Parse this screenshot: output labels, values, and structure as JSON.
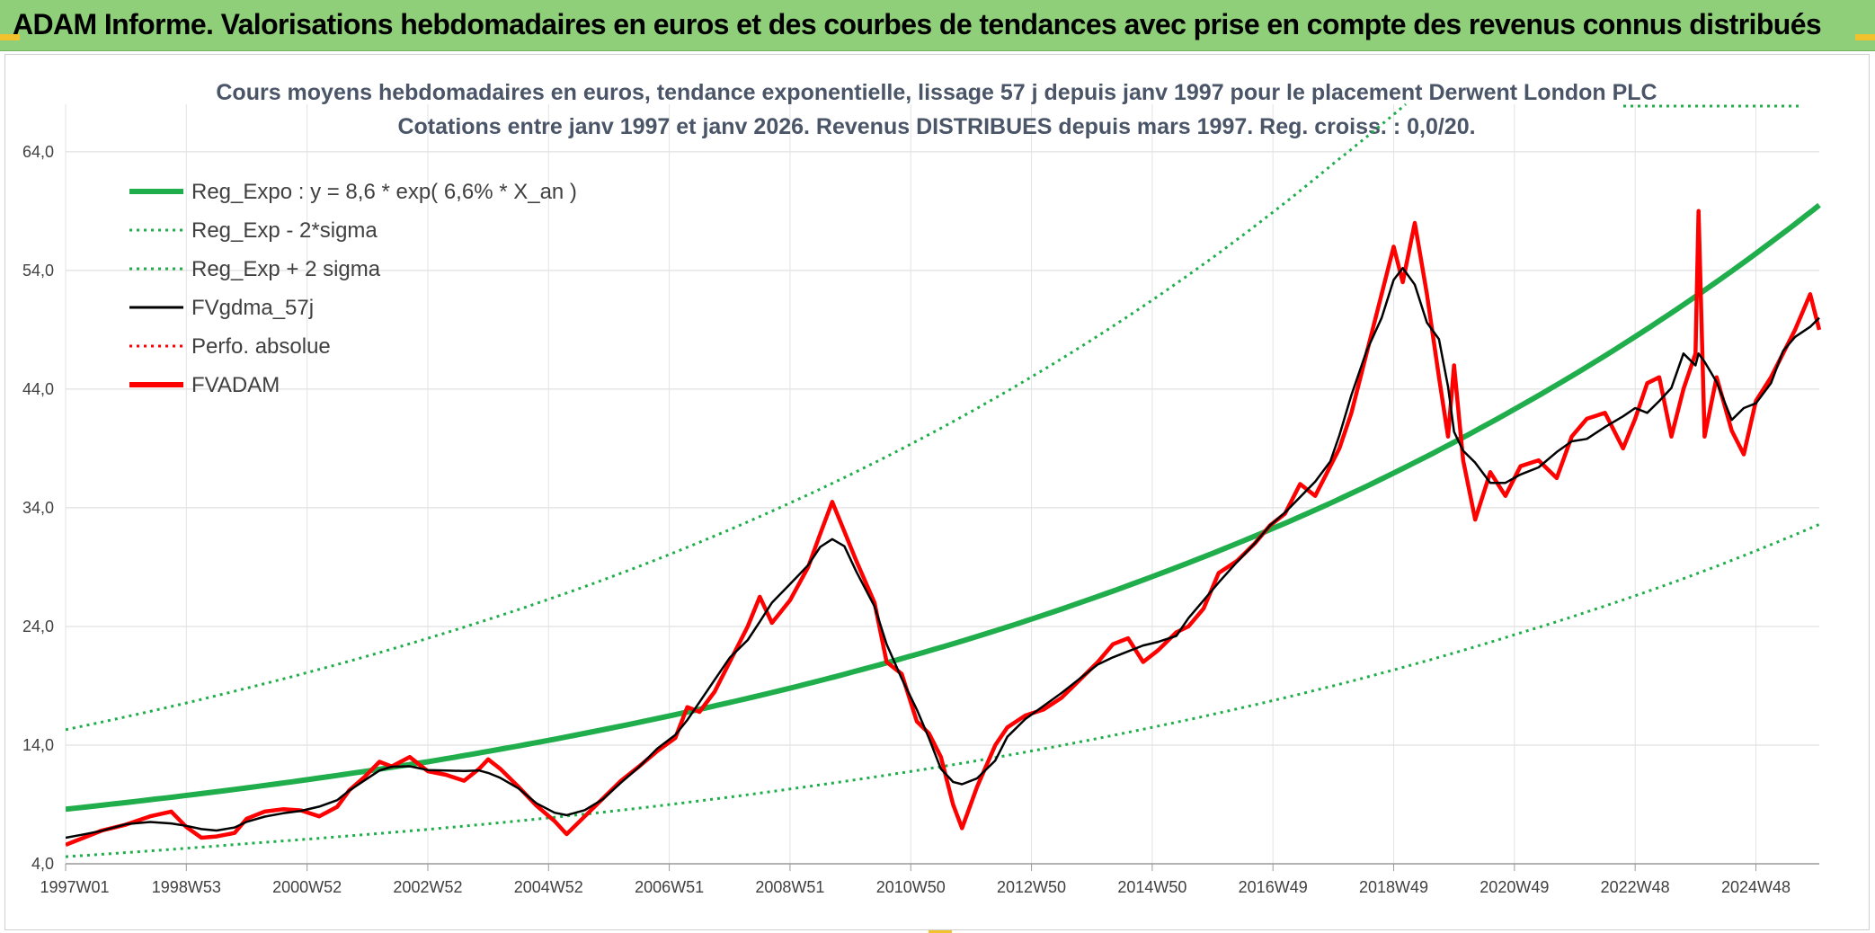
{
  "banner": {
    "title": "ADAM Informe. Valorisations hebdomadaires en euros et des courbes de tendances avec prise en compte des revenus connus distribués"
  },
  "colors": {
    "banner_bg": "#8fcf7a",
    "trend_green": "#1fae4b",
    "price_red": "#ff0000",
    "smooth_black": "#000000",
    "corner_gold": "#f2c12e"
  },
  "chart_data": {
    "type": "line",
    "title_lines": [
      "Cours moyens hebdomadaires en euros, tendance exponentielle, lissage 57 j depuis janv 1997 pour le placement Derwent London PLC",
      "Cotations entre janv 1997 et janv 2026. Revenus DISTRIBUES depuis mars 1997. Reg. croiss. : 0,0/20."
    ],
    "x_tick_labels": [
      "1997W01",
      "1998W53",
      "2000W52",
      "2002W52",
      "2004W52",
      "2006W51",
      "2008W51",
      "2010W50",
      "2012W50",
      "2014W50",
      "2016W49",
      "2018W49",
      "2020W49",
      "2022W48",
      "2024W48"
    ],
    "x_range_years": [
      1997.0,
      2026.05
    ],
    "y_tick_labels": [
      "4,0",
      "14,0",
      "24,0",
      "34,0",
      "44,0",
      "54,0",
      "64,0"
    ],
    "y_ticks": [
      4,
      14,
      24,
      34,
      44,
      54,
      64
    ],
    "ylim": [
      4,
      68
    ],
    "grid": true,
    "legend_position": "top-left",
    "legend": [
      {
        "label": "Reg_Expo : y = 8,6 * exp( 6,6% *  X_an )",
        "style": "solid-thick",
        "color": "#1fae4b"
      },
      {
        "label": "Reg_Exp - 2*sigma",
        "style": "dotted",
        "color": "#1fae4b"
      },
      {
        "label": "Reg_Exp + 2 sigma",
        "style": "dotted",
        "color": "#1fae4b"
      },
      {
        "label": "FVgdma_57j",
        "style": "solid",
        "color": "#000000"
      },
      {
        "label": "Perfo. absolue",
        "style": "dotted",
        "color": "#ff0000"
      },
      {
        "label": "FVADAM",
        "style": "solid-thick",
        "color": "#ff0000"
      }
    ],
    "series": [
      {
        "name": "Reg_Expo : y = 8,6 * exp( 6,6% *  X_an )",
        "kind": "exp",
        "points": [
          [
            1997.0,
            8.6
          ],
          [
            2000.0,
            10.4
          ],
          [
            2003.0,
            12.6
          ],
          [
            2006.0,
            15.4
          ],
          [
            2009.0,
            18.8
          ],
          [
            2012.0,
            23.0
          ],
          [
            2015.0,
            28.2
          ],
          [
            2018.0,
            34.5
          ],
          [
            2021.0,
            42.3
          ],
          [
            2024.0,
            51.8
          ],
          [
            2026.05,
            59.5
          ]
        ]
      },
      {
        "name": "Reg_Exp - 2*sigma",
        "kind": "exp",
        "points": [
          [
            1997.0,
            4.6
          ],
          [
            2000.0,
            5.7
          ],
          [
            2003.0,
            6.9
          ],
          [
            2006.0,
            8.4
          ],
          [
            2009.0,
            10.3
          ],
          [
            2012.0,
            12.6
          ],
          [
            2015.0,
            15.5
          ],
          [
            2018.0,
            19.0
          ],
          [
            2021.0,
            23.3
          ],
          [
            2024.0,
            28.4
          ],
          [
            2026.05,
            32.6
          ]
        ]
      },
      {
        "name": "Reg_Exp + 2 sigma",
        "kind": "exp",
        "points": [
          [
            1997.0,
            15.3
          ],
          [
            2000.0,
            18.8
          ],
          [
            2003.0,
            23.0
          ],
          [
            2006.0,
            28.1
          ],
          [
            2009.0,
            34.4
          ],
          [
            2012.0,
            42.1
          ],
          [
            2015.0,
            51.5
          ],
          [
            2018.0,
            63.0
          ],
          [
            2019.2,
            68.0
          ]
        ]
      },
      {
        "name": "FVADAM",
        "kind": "price",
        "points": [
          [
            1997.0,
            5.6
          ],
          [
            1997.3,
            6.2
          ],
          [
            1997.6,
            6.8
          ],
          [
            1998.0,
            7.3
          ],
          [
            1998.4,
            8.0
          ],
          [
            1998.75,
            8.4
          ],
          [
            1999.0,
            7.1
          ],
          [
            1999.25,
            6.2
          ],
          [
            1999.5,
            6.3
          ],
          [
            1999.8,
            6.6
          ],
          [
            2000.0,
            7.8
          ],
          [
            2000.3,
            8.4
          ],
          [
            2000.6,
            8.6
          ],
          [
            2000.9,
            8.5
          ],
          [
            2001.2,
            8.0
          ],
          [
            2001.5,
            8.8
          ],
          [
            2001.7,
            10.2
          ],
          [
            2001.95,
            11.3
          ],
          [
            2002.2,
            12.6
          ],
          [
            2002.4,
            12.2
          ],
          [
            2002.7,
            13.0
          ],
          [
            2003.0,
            11.8
          ],
          [
            2003.3,
            11.5
          ],
          [
            2003.6,
            11.0
          ],
          [
            2003.85,
            12.0
          ],
          [
            2004.0,
            12.8
          ],
          [
            2004.2,
            12.0
          ],
          [
            2004.5,
            10.5
          ],
          [
            2004.8,
            8.9
          ],
          [
            2005.1,
            7.6
          ],
          [
            2005.3,
            6.5
          ],
          [
            2005.6,
            8.0
          ],
          [
            2005.9,
            9.5
          ],
          [
            2006.2,
            11.0
          ],
          [
            2006.5,
            12.2
          ],
          [
            2006.8,
            13.5
          ],
          [
            2007.1,
            14.6
          ],
          [
            2007.3,
            17.2
          ],
          [
            2007.5,
            16.8
          ],
          [
            2007.75,
            18.5
          ],
          [
            2008.0,
            21.0
          ],
          [
            2008.3,
            24.0
          ],
          [
            2008.5,
            26.5
          ],
          [
            2008.7,
            24.3
          ],
          [
            2009.0,
            26.2
          ],
          [
            2009.3,
            29.0
          ],
          [
            2009.5,
            31.8
          ],
          [
            2009.7,
            34.5
          ],
          [
            2009.9,
            32.0
          ],
          [
            2010.1,
            29.5
          ],
          [
            2010.4,
            26.0
          ],
          [
            2010.6,
            21.0
          ],
          [
            2010.85,
            20.0
          ],
          [
            2011.1,
            16.0
          ],
          [
            2011.3,
            15.0
          ],
          [
            2011.5,
            13.0
          ],
          [
            2011.7,
            9.0
          ],
          [
            2011.85,
            7.0
          ],
          [
            2012.1,
            10.5
          ],
          [
            2012.4,
            14.0
          ],
          [
            2012.6,
            15.5
          ],
          [
            2012.9,
            16.5
          ],
          [
            2013.2,
            17.0
          ],
          [
            2013.5,
            18.0
          ],
          [
            2013.8,
            19.5
          ],
          [
            2014.1,
            21.0
          ],
          [
            2014.35,
            22.5
          ],
          [
            2014.6,
            23.0
          ],
          [
            2014.85,
            21.0
          ],
          [
            2015.1,
            22.0
          ],
          [
            2015.4,
            23.5
          ],
          [
            2015.6,
            24.0
          ],
          [
            2015.85,
            25.5
          ],
          [
            2016.1,
            28.5
          ],
          [
            2016.4,
            29.5
          ],
          [
            2016.7,
            31.0
          ],
          [
            2016.95,
            32.5
          ],
          [
            2017.2,
            33.5
          ],
          [
            2017.45,
            36.0
          ],
          [
            2017.7,
            35.0
          ],
          [
            2017.95,
            37.5
          ],
          [
            2018.1,
            39.0
          ],
          [
            2018.3,
            42.0
          ],
          [
            2018.55,
            47.0
          ],
          [
            2018.8,
            52.0
          ],
          [
            2019.0,
            56.0
          ],
          [
            2019.15,
            53.0
          ],
          [
            2019.35,
            58.0
          ],
          [
            2019.55,
            52.0
          ],
          [
            2019.75,
            45.0
          ],
          [
            2019.9,
            40.0
          ],
          [
            2020.0,
            46.0
          ],
          [
            2020.15,
            38.0
          ],
          [
            2020.35,
            33.0
          ],
          [
            2020.6,
            37.0
          ],
          [
            2020.85,
            35.0
          ],
          [
            2021.1,
            37.5
          ],
          [
            2021.4,
            38.0
          ],
          [
            2021.7,
            36.5
          ],
          [
            2021.95,
            40.0
          ],
          [
            2022.2,
            41.5
          ],
          [
            2022.5,
            42.0
          ],
          [
            2022.8,
            39.0
          ],
          [
            2023.0,
            41.5
          ],
          [
            2023.2,
            44.5
          ],
          [
            2023.4,
            45.0
          ],
          [
            2023.6,
            40.0
          ],
          [
            2023.8,
            44.0
          ],
          [
            2024.0,
            47.0
          ],
          [
            2024.05,
            59.0
          ],
          [
            2024.15,
            40.0
          ],
          [
            2024.35,
            45.0
          ],
          [
            2024.6,
            40.5
          ],
          [
            2024.8,
            38.5
          ],
          [
            2025.0,
            43.0
          ],
          [
            2025.25,
            45.0
          ],
          [
            2025.45,
            47.0
          ],
          [
            2025.65,
            49.0
          ],
          [
            2025.9,
            52.0
          ],
          [
            2026.05,
            49.0
          ]
        ]
      },
      {
        "name": "FVgdma_57j",
        "kind": "smooth"
      }
    ]
  }
}
